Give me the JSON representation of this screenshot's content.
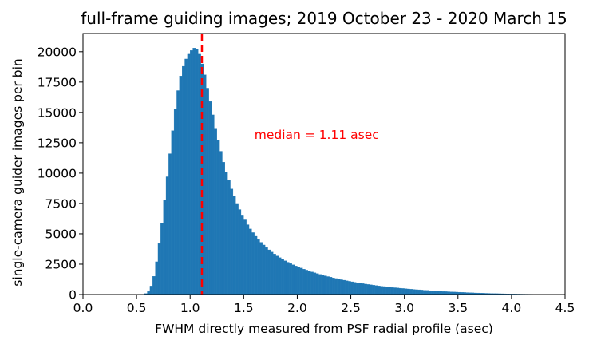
{
  "chart_data": {
    "type": "bar",
    "title": "full-frame guiding images; 2019 October 23 - 2020 March 15",
    "xlabel": "FWHM directly measured from PSF radial profile (asec)",
    "ylabel": "single-camera guider images per bin",
    "xlim": [
      0.0,
      4.5
    ],
    "ylim": [
      0,
      21500
    ],
    "xticks": [
      "0.0",
      "0.5",
      "1.0",
      "1.5",
      "2.0",
      "2.5",
      "3.0",
      "3.5",
      "4.0",
      "4.5"
    ],
    "yticks": [
      "0",
      "2500",
      "5000",
      "7500",
      "10000",
      "12500",
      "15000",
      "17500",
      "20000"
    ],
    "bin_width": 0.025,
    "bin_start": 0.55,
    "values": [
      20,
      80,
      250,
      700,
      1500,
      2700,
      4200,
      5900,
      7800,
      9700,
      11600,
      13500,
      15300,
      16800,
      18000,
      18800,
      19400,
      19800,
      20100,
      20300,
      20200,
      19800,
      19000,
      18100,
      17000,
      15900,
      14800,
      13700,
      12700,
      11800,
      10900,
      10100,
      9400,
      8700,
      8100,
      7500,
      7000,
      6550,
      6150,
      5750,
      5400,
      5100,
      4800,
      4530,
      4300,
      4080,
      3870,
      3680,
      3500,
      3340,
      3180,
      3040,
      2900,
      2780,
      2660,
      2550,
      2450,
      2350,
      2260,
      2180,
      2090,
      2010,
      1940,
      1860,
      1790,
      1730,
      1660,
      1600,
      1540,
      1480,
      1430,
      1370,
      1320,
      1270,
      1220,
      1180,
      1130,
      1090,
      1050,
      1010,
      970,
      930,
      900,
      860,
      830,
      800,
      770,
      740,
      710,
      680,
      660,
      630,
      610,
      580,
      560,
      540,
      520,
      500,
      480,
      460,
      440,
      420,
      400,
      390,
      370,
      350,
      340,
      320,
      310,
      290,
      280,
      270,
      250,
      240,
      230,
      220,
      210,
      200,
      190,
      180,
      170,
      160,
      150,
      140,
      130,
      125,
      115,
      110,
      100,
      95,
      85,
      80,
      75,
      70,
      65,
      60,
      55,
      50,
      45,
      42,
      38,
      35,
      32,
      29,
      26,
      24,
      22,
      20,
      18,
      16,
      14,
      12,
      10,
      8
    ],
    "bar_color": "#1f77b4",
    "median_line": {
      "x": 1.11,
      "color": "#ff0000"
    },
    "annotation": {
      "text": "median = 1.11 asec",
      "color": "#ff0000",
      "x": 1.6,
      "y": 13200
    },
    "grid": false,
    "legend": "none"
  }
}
